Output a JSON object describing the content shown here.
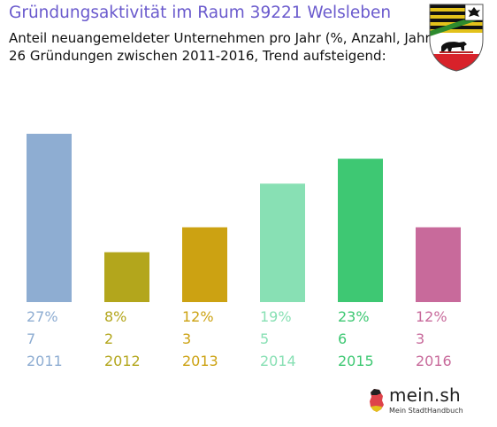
{
  "title": "Gründungsaktivität im Raum 39221 Welsleben",
  "subtitle_line1": "Anteil neuangemeldeter Unternehmen pro Jahr (%, Anzahl, Jahr)",
  "subtitle_line2": "26 Gründungen zwischen 2011-2016, Trend aufsteigend:",
  "brand": {
    "name": "mein.sh",
    "tagline": "Mein StadtHandbuch"
  },
  "crest_icon": "saxony-anhalt-coat-of-arms-icon",
  "chart_data": {
    "type": "bar",
    "title": "Gründungsaktivität im Raum 39221 Welsleben",
    "categories": [
      "2011",
      "2012",
      "2013",
      "2014",
      "2015",
      "2016"
    ],
    "series": [
      {
        "values": [
          27,
          8,
          12,
          19,
          23,
          12
        ]
      }
    ],
    "counts": [
      7,
      2,
      3,
      5,
      6,
      3
    ],
    "percent_labels": [
      "27%",
      "8%",
      "12%",
      "19%",
      "23%",
      "12%"
    ],
    "colors": [
      "#8eadd2",
      "#b3a61c",
      "#cca212",
      "#88e0b4",
      "#3ec873",
      "#c86a9b"
    ],
    "xlabel": "",
    "ylabel": "",
    "ylim": [
      0,
      27
    ],
    "grid": false,
    "legend": "none"
  }
}
